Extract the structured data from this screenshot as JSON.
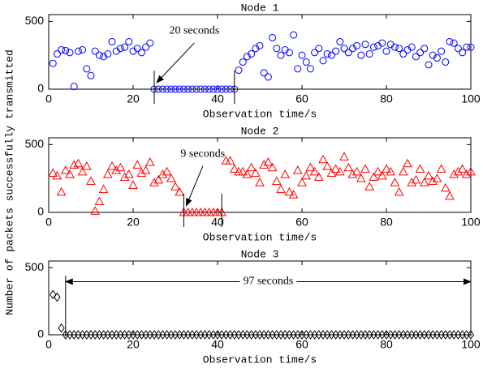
{
  "ylabel": "Number of packets successfully transmitted",
  "chart_data": [
    {
      "type": "scatter",
      "title": "Node 1",
      "xlabel": "Observation time/s",
      "marker": "circle",
      "color": "#0000ff",
      "xlim": [
        0,
        100
      ],
      "xticks": [
        0,
        20,
        40,
        60,
        80,
        100
      ],
      "ylim": [
        0,
        550
      ],
      "yticks": [
        0,
        500
      ],
      "x": [
        1,
        2,
        3,
        4,
        5,
        6,
        7,
        8,
        9,
        10,
        11,
        12,
        13,
        14,
        15,
        16,
        17,
        18,
        19,
        20,
        21,
        22,
        23,
        24,
        25,
        26,
        27,
        28,
        29,
        30,
        31,
        32,
        33,
        34,
        35,
        36,
        37,
        38,
        39,
        40,
        41,
        42,
        43,
        44,
        45,
        46,
        47,
        48,
        49,
        50,
        51,
        52,
        53,
        54,
        55,
        56,
        57,
        58,
        59,
        60,
        61,
        62,
        63,
        64,
        65,
        66,
        67,
        68,
        69,
        70,
        71,
        72,
        73,
        74,
        75,
        76,
        77,
        78,
        79,
        80,
        81,
        82,
        83,
        84,
        85,
        86,
        87,
        88,
        89,
        90,
        91,
        92,
        93,
        94,
        95,
        96,
        97,
        98,
        99,
        100
      ],
      "values": [
        190,
        260,
        290,
        285,
        270,
        20,
        280,
        290,
        150,
        100,
        280,
        250,
        240,
        260,
        350,
        280,
        300,
        310,
        350,
        280,
        300,
        270,
        310,
        340,
        0,
        0,
        0,
        0,
        0,
        0,
        0,
        0,
        0,
        0,
        0,
        0,
        0,
        0,
        0,
        0,
        0,
        0,
        0,
        0,
        140,
        200,
        240,
        260,
        300,
        320,
        120,
        90,
        380,
        300,
        250,
        290,
        270,
        400,
        150,
        250,
        200,
        150,
        270,
        300,
        210,
        260,
        250,
        280,
        350,
        300,
        270,
        300,
        320,
        250,
        330,
        260,
        310,
        320,
        340,
        280,
        330,
        310,
        300,
        260,
        290,
        310,
        240,
        270,
        300,
        180,
        250,
        230,
        280,
        200,
        350,
        340,
        300,
        270,
        310,
        310
      ],
      "annotation": {
        "text": "20 seconds",
        "x_start": 25,
        "x_end": 44,
        "arrow": "to-start"
      }
    },
    {
      "type": "scatter",
      "title": "Node 2",
      "xlabel": "Observation time/s",
      "marker": "triangle",
      "color": "#ff0000",
      "xlim": [
        0,
        100
      ],
      "xticks": [
        0,
        20,
        40,
        60,
        80,
        100
      ],
      "ylim": [
        0,
        550
      ],
      "yticks": [
        0,
        500
      ],
      "x": [
        1,
        2,
        3,
        4,
        5,
        6,
        7,
        8,
        9,
        10,
        11,
        12,
        13,
        14,
        15,
        16,
        17,
        18,
        19,
        20,
        21,
        22,
        23,
        24,
        25,
        26,
        27,
        28,
        29,
        30,
        31,
        32,
        33,
        34,
        35,
        36,
        37,
        38,
        39,
        40,
        41,
        42,
        43,
        44,
        45,
        46,
        47,
        48,
        49,
        50,
        51,
        52,
        53,
        54,
        55,
        56,
        57,
        58,
        59,
        60,
        61,
        62,
        63,
        64,
        65,
        66,
        67,
        68,
        69,
        70,
        71,
        72,
        73,
        74,
        75,
        76,
        77,
        78,
        79,
        80,
        81,
        82,
        83,
        84,
        85,
        86,
        87,
        88,
        89,
        90,
        91,
        92,
        93,
        94,
        95,
        96,
        97,
        98,
        99,
        100
      ],
      "values": [
        290,
        270,
        150,
        310,
        280,
        350,
        360,
        300,
        340,
        230,
        10,
        80,
        170,
        280,
        340,
        310,
        330,
        260,
        280,
        200,
        350,
        290,
        310,
        370,
        220,
        240,
        280,
        300,
        250,
        190,
        150,
        0,
        0,
        0,
        0,
        0,
        0,
        0,
        0,
        0,
        0,
        380,
        380,
        320,
        300,
        300,
        280,
        330,
        290,
        220,
        350,
        370,
        330,
        230,
        170,
        280,
        150,
        130,
        310,
        220,
        270,
        330,
        300,
        260,
        390,
        340,
        290,
        320,
        300,
        410,
        330,
        280,
        300,
        250,
        320,
        190,
        260,
        300,
        270,
        320,
        300,
        220,
        150,
        300,
        360,
        220,
        240,
        320,
        220,
        270,
        230,
        250,
        320,
        180,
        120,
        280,
        300,
        320,
        280,
        300
      ],
      "annotation": {
        "text": "9 seconds",
        "x_start": 32,
        "x_end": 41,
        "arrow": "to-start"
      }
    },
    {
      "type": "scatter",
      "title": "Node 3",
      "xlabel": "Observation time/s",
      "marker": "diamond",
      "color": "#000000",
      "xlim": [
        0,
        100
      ],
      "xticks": [
        0,
        20,
        40,
        60,
        80,
        100
      ],
      "ylim": [
        0,
        550
      ],
      "yticks": [
        0,
        500
      ],
      "x": [
        1,
        2,
        3,
        4,
        5,
        6,
        7,
        8,
        9,
        10,
        11,
        12,
        13,
        14,
        15,
        16,
        17,
        18,
        19,
        20,
        21,
        22,
        23,
        24,
        25,
        26,
        27,
        28,
        29,
        30,
        31,
        32,
        33,
        34,
        35,
        36,
        37,
        38,
        39,
        40,
        41,
        42,
        43,
        44,
        45,
        46,
        47,
        48,
        49,
        50,
        51,
        52,
        53,
        54,
        55,
        56,
        57,
        58,
        59,
        60,
        61,
        62,
        63,
        64,
        65,
        66,
        67,
        68,
        69,
        70,
        71,
        72,
        73,
        74,
        75,
        76,
        77,
        78,
        79,
        80,
        81,
        82,
        83,
        84,
        85,
        86,
        87,
        88,
        89,
        90,
        91,
        92,
        93,
        94,
        95,
        96,
        97,
        98,
        99,
        100
      ],
      "values": [
        300,
        280,
        50,
        0,
        0,
        0,
        0,
        0,
        0,
        0,
        0,
        0,
        0,
        0,
        0,
        0,
        0,
        0,
        0,
        0,
        0,
        0,
        0,
        0,
        0,
        0,
        0,
        0,
        0,
        0,
        0,
        0,
        0,
        0,
        0,
        0,
        0,
        0,
        0,
        0,
        0,
        0,
        0,
        0,
        0,
        0,
        0,
        0,
        0,
        0,
        0,
        0,
        0,
        0,
        0,
        0,
        0,
        0,
        0,
        0,
        0,
        0,
        0,
        0,
        0,
        0,
        0,
        0,
        0,
        0,
        0,
        0,
        0,
        0,
        0,
        0,
        0,
        0,
        0,
        0,
        0,
        0,
        0,
        0,
        0,
        0,
        0,
        0,
        0,
        0,
        0,
        0,
        0,
        0,
        0,
        0,
        0,
        0,
        0,
        0
      ],
      "annotation": {
        "text": "97 seconds",
        "x_start": 4,
        "x_end": 100,
        "arrow": "both"
      }
    }
  ]
}
